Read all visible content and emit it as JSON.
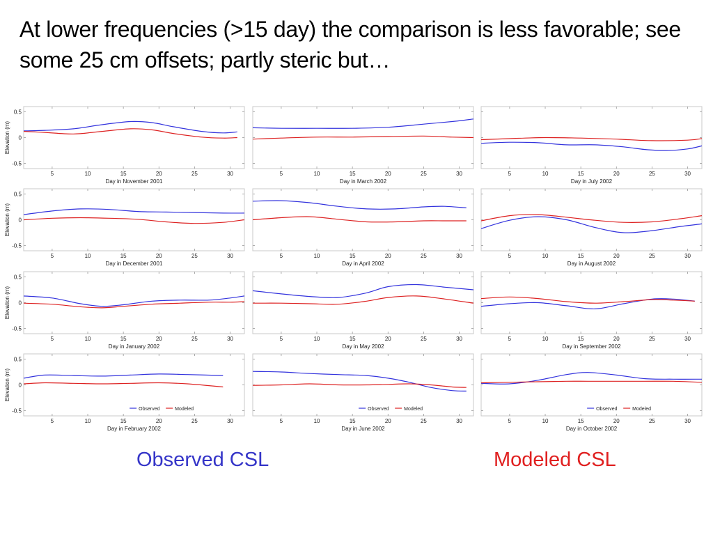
{
  "title": "At lower frequencies (>15 day) the comparison is less favorable; see some 25 cm offsets; partly steric but…",
  "labels": {
    "observed": "Observed CSL",
    "modeled": "Modeled CSL"
  },
  "colors": {
    "observed": "#3333dd",
    "modeled": "#dd2222"
  },
  "chart_data": [
    {
      "type": "line",
      "xlabel": "Day in November 2001",
      "ylabel": "Elevation (m)",
      "xlim": [
        1,
        32
      ],
      "ylim": [
        -0.6,
        0.6
      ],
      "xticks": [
        5,
        10,
        15,
        20,
        25,
        30
      ],
      "yticks": [
        0.5,
        0,
        -0.5
      ],
      "ytick_labels": [
        "0.5",
        "0",
        "-0.5"
      ],
      "series": [
        {
          "name": "Observed",
          "x": [
            1,
            4,
            8,
            12,
            16,
            19,
            22,
            26,
            29,
            31
          ],
          "y": [
            0.13,
            0.14,
            0.17,
            0.25,
            0.31,
            0.29,
            0.21,
            0.12,
            0.09,
            0.11
          ]
        },
        {
          "name": "Modeled",
          "x": [
            1,
            4,
            8,
            12,
            16,
            19,
            22,
            26,
            29,
            31
          ],
          "y": [
            0.12,
            0.1,
            0.07,
            0.12,
            0.17,
            0.15,
            0.08,
            0.01,
            -0.01,
            0.0
          ]
        }
      ]
    },
    {
      "type": "line",
      "xlabel": "Day in March 2002",
      "ylabel": "",
      "xlim": [
        1,
        32
      ],
      "ylim": [
        -0.6,
        0.6
      ],
      "xticks": [
        5,
        10,
        15,
        20,
        25,
        30
      ],
      "yticks": [
        0.5,
        0,
        -0.5
      ],
      "ytick_labels": [],
      "series": [
        {
          "name": "Observed",
          "x": [
            1,
            5,
            10,
            15,
            20,
            25,
            29,
            32
          ],
          "y": [
            0.19,
            0.18,
            0.18,
            0.18,
            0.2,
            0.26,
            0.31,
            0.36
          ]
        },
        {
          "name": "Modeled",
          "x": [
            1,
            5,
            10,
            15,
            20,
            25,
            29,
            32
          ],
          "y": [
            -0.03,
            -0.01,
            0.01,
            0.01,
            0.02,
            0.03,
            0.01,
            0.0
          ]
        }
      ]
    },
    {
      "type": "line",
      "xlabel": "Day in July 2002",
      "ylabel": "",
      "xlim": [
        1,
        32
      ],
      "ylim": [
        -0.6,
        0.6
      ],
      "xticks": [
        5,
        10,
        15,
        20,
        25,
        30
      ],
      "yticks": [
        0.5,
        0,
        -0.5
      ],
      "ytick_labels": [],
      "series": [
        {
          "name": "Observed",
          "x": [
            1,
            5,
            9,
            13,
            17,
            21,
            24,
            27,
            30,
            32
          ],
          "y": [
            -0.11,
            -0.09,
            -0.1,
            -0.14,
            -0.14,
            -0.18,
            -0.23,
            -0.25,
            -0.22,
            -0.16
          ]
        },
        {
          "name": "Modeled",
          "x": [
            1,
            5,
            10,
            15,
            20,
            25,
            30,
            32
          ],
          "y": [
            -0.04,
            -0.02,
            0.0,
            -0.01,
            -0.03,
            -0.06,
            -0.05,
            -0.02
          ]
        }
      ]
    },
    {
      "type": "line",
      "xlabel": "Day in December 2001",
      "ylabel": "Elevation (m)",
      "xlim": [
        1,
        32
      ],
      "ylim": [
        -0.6,
        0.6
      ],
      "xticks": [
        5,
        10,
        15,
        20,
        25,
        30
      ],
      "yticks": [
        0.5,
        0,
        -0.5
      ],
      "ytick_labels": [
        "0.5",
        "0",
        "-0.5"
      ],
      "series": [
        {
          "name": "Observed",
          "x": [
            1,
            5,
            9,
            13,
            17,
            21,
            25,
            29,
            32
          ],
          "y": [
            0.1,
            0.17,
            0.21,
            0.2,
            0.16,
            0.15,
            0.14,
            0.13,
            0.13
          ]
        },
        {
          "name": "Modeled",
          "x": [
            1,
            5,
            9,
            13,
            17,
            21,
            25,
            29,
            32
          ],
          "y": [
            0.0,
            0.03,
            0.04,
            0.03,
            0.01,
            -0.04,
            -0.07,
            -0.05,
            0.0
          ]
        }
      ]
    },
    {
      "type": "line",
      "xlabel": "Day in April 2002",
      "ylabel": "",
      "xlim": [
        1,
        32
      ],
      "ylim": [
        -0.6,
        0.6
      ],
      "xticks": [
        5,
        10,
        15,
        20,
        25,
        30
      ],
      "yticks": [
        0.5,
        0,
        -0.5
      ],
      "ytick_labels": [],
      "series": [
        {
          "name": "Observed",
          "x": [
            1,
            5,
            9,
            13,
            17,
            21,
            25,
            28,
            31
          ],
          "y": [
            0.36,
            0.37,
            0.33,
            0.26,
            0.21,
            0.21,
            0.25,
            0.26,
            0.23
          ]
        },
        {
          "name": "Modeled",
          "x": [
            1,
            5,
            9,
            13,
            17,
            21,
            25,
            28,
            31
          ],
          "y": [
            0.0,
            0.04,
            0.06,
            0.01,
            -0.04,
            -0.04,
            -0.02,
            -0.02,
            -0.02
          ]
        }
      ]
    },
    {
      "type": "line",
      "xlabel": "Day in August 2002",
      "ylabel": "",
      "xlim": [
        1,
        32
      ],
      "ylim": [
        -0.6,
        0.6
      ],
      "xticks": [
        5,
        10,
        15,
        20,
        25,
        30
      ],
      "yticks": [
        0.5,
        0,
        -0.5
      ],
      "ytick_labels": [],
      "series": [
        {
          "name": "Observed",
          "x": [
            1,
            5,
            9,
            13,
            17,
            21,
            25,
            29,
            32
          ],
          "y": [
            -0.17,
            -0.01,
            0.06,
            0.0,
            -0.15,
            -0.25,
            -0.21,
            -0.13,
            -0.08
          ]
        },
        {
          "name": "Modeled",
          "x": [
            1,
            5,
            9,
            13,
            17,
            21,
            25,
            29,
            32
          ],
          "y": [
            -0.02,
            0.08,
            0.1,
            0.05,
            -0.01,
            -0.05,
            -0.04,
            0.02,
            0.08
          ]
        }
      ]
    },
    {
      "type": "line",
      "xlabel": "Day in January 2002",
      "ylabel": "Elevation (m)",
      "xlim": [
        1,
        32
      ],
      "ylim": [
        -0.6,
        0.6
      ],
      "xticks": [
        5,
        10,
        15,
        20,
        25,
        30
      ],
      "yticks": [
        0.5,
        0,
        -0.5
      ],
      "ytick_labels": [
        "0.5",
        "0",
        "-0.5"
      ],
      "series": [
        {
          "name": "Observed",
          "x": [
            1,
            5,
            9,
            12,
            15,
            19,
            23,
            27,
            30,
            32
          ],
          "y": [
            0.13,
            0.09,
            -0.02,
            -0.07,
            -0.04,
            0.03,
            0.05,
            0.05,
            0.09,
            0.13
          ]
        },
        {
          "name": "Modeled",
          "x": [
            1,
            5,
            9,
            12,
            15,
            19,
            23,
            27,
            30,
            32
          ],
          "y": [
            -0.01,
            -0.03,
            -0.08,
            -0.1,
            -0.07,
            -0.03,
            -0.01,
            0.01,
            0.01,
            0.02
          ]
        }
      ]
    },
    {
      "type": "line",
      "xlabel": "Day in May 2002",
      "ylabel": "",
      "xlim": [
        1,
        32
      ],
      "ylim": [
        -0.6,
        0.6
      ],
      "xticks": [
        5,
        10,
        15,
        20,
        25,
        30
      ],
      "yticks": [
        0.5,
        0,
        -0.5
      ],
      "ytick_labels": [],
      "series": [
        {
          "name": "Observed",
          "x": [
            1,
            5,
            9,
            13,
            17,
            20,
            24,
            28,
            32
          ],
          "y": [
            0.23,
            0.17,
            0.12,
            0.1,
            0.19,
            0.31,
            0.35,
            0.3,
            0.25
          ]
        },
        {
          "name": "Modeled",
          "x": [
            1,
            5,
            9,
            13,
            17,
            20,
            24,
            28,
            32
          ],
          "y": [
            -0.01,
            -0.01,
            -0.02,
            -0.03,
            0.03,
            0.1,
            0.13,
            0.07,
            -0.01
          ]
        }
      ]
    },
    {
      "type": "line",
      "xlabel": "Day in September 2002",
      "ylabel": "",
      "xlim": [
        1,
        32
      ],
      "ylim": [
        -0.6,
        0.6
      ],
      "xticks": [
        5,
        10,
        15,
        20,
        25,
        30
      ],
      "yticks": [
        0.5,
        0,
        -0.5
      ],
      "ytick_labels": [],
      "series": [
        {
          "name": "Observed",
          "x": [
            1,
            5,
            9,
            13,
            17,
            21,
            25,
            28,
            31
          ],
          "y": [
            -0.07,
            -0.02,
            0.0,
            -0.06,
            -0.12,
            -0.02,
            0.07,
            0.07,
            0.03
          ]
        },
        {
          "name": "Modeled",
          "x": [
            1,
            5,
            9,
            13,
            17,
            21,
            25,
            28,
            31
          ],
          "y": [
            0.08,
            0.11,
            0.08,
            0.02,
            -0.01,
            0.02,
            0.06,
            0.05,
            0.03
          ]
        }
      ]
    },
    {
      "type": "line",
      "xlabel": "Day in February 2002",
      "ylabel": "Elevation (m)",
      "xlim": [
        1,
        32
      ],
      "ylim": [
        -0.6,
        0.6
      ],
      "xticks": [
        5,
        10,
        15,
        20,
        25,
        30
      ],
      "yticks": [
        0.5,
        0,
        -0.5
      ],
      "ytick_labels": [
        "0.5",
        "0",
        "-0.5"
      ],
      "series": [
        {
          "name": "Observed",
          "x": [
            1,
            4,
            8,
            12,
            16,
            20,
            24,
            29
          ],
          "y": [
            0.13,
            0.19,
            0.18,
            0.17,
            0.19,
            0.21,
            0.2,
            0.18
          ]
        },
        {
          "name": "Modeled",
          "x": [
            1,
            4,
            8,
            12,
            16,
            20,
            24,
            29
          ],
          "y": [
            0.02,
            0.04,
            0.03,
            0.02,
            0.03,
            0.04,
            0.02,
            -0.04
          ]
        }
      ]
    },
    {
      "type": "line",
      "xlabel": "Day in June 2002",
      "ylabel": "",
      "xlim": [
        1,
        32
      ],
      "ylim": [
        -0.6,
        0.6
      ],
      "xticks": [
        5,
        10,
        15,
        20,
        25,
        30
      ],
      "yticks": [
        0.5,
        0,
        -0.5
      ],
      "ytick_labels": [],
      "series": [
        {
          "name": "Observed",
          "x": [
            1,
            5,
            9,
            13,
            17,
            20,
            23,
            26,
            29,
            31
          ],
          "y": [
            0.26,
            0.25,
            0.22,
            0.2,
            0.18,
            0.13,
            0.05,
            -0.05,
            -0.11,
            -0.12
          ]
        },
        {
          "name": "Modeled",
          "x": [
            1,
            5,
            9,
            13,
            17,
            20,
            23,
            26,
            29,
            31
          ],
          "y": [
            -0.01,
            0.0,
            0.02,
            0.0,
            0.0,
            0.01,
            0.02,
            0.0,
            -0.04,
            -0.05
          ]
        }
      ]
    },
    {
      "type": "line",
      "xlabel": "Day in October 2002",
      "ylabel": "",
      "xlim": [
        1,
        32
      ],
      "ylim": [
        -0.6,
        0.6
      ],
      "xticks": [
        5,
        10,
        15,
        20,
        25,
        30
      ],
      "yticks": [
        0.5,
        0,
        -0.5
      ],
      "ytick_labels": [],
      "series": [
        {
          "name": "Observed",
          "x": [
            1,
            5,
            9,
            13,
            16,
            20,
            24,
            28,
            32
          ],
          "y": [
            0.03,
            0.02,
            0.09,
            0.2,
            0.24,
            0.19,
            0.12,
            0.11,
            0.11
          ]
        },
        {
          "name": "Modeled",
          "x": [
            1,
            5,
            9,
            13,
            16,
            20,
            24,
            28,
            32
          ],
          "y": [
            0.04,
            0.05,
            0.06,
            0.07,
            0.07,
            0.07,
            0.07,
            0.07,
            0.05
          ]
        }
      ]
    }
  ]
}
